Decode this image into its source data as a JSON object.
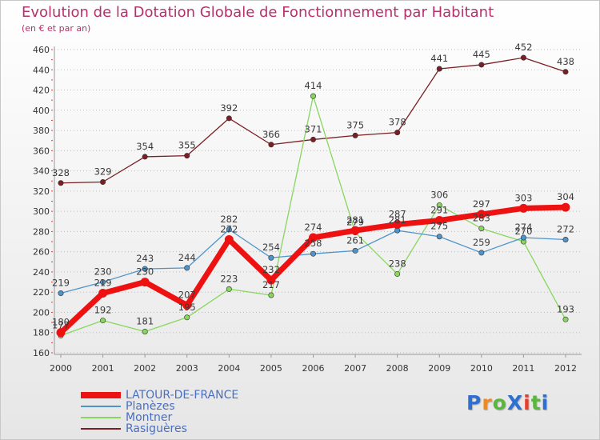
{
  "title": "Evolution de la Dotation Globale de Fonctionnement par Habitant",
  "subtitle": "(en € et par an)",
  "brand": {
    "text": "ProXiti",
    "letter_colors": [
      "#2f6fd0",
      "#f08a1c",
      "#58b83a",
      "#2f6fd0",
      "#e83c2c",
      "#58b83a",
      "#2f6fd0"
    ]
  },
  "chart_data": {
    "type": "line",
    "x": [
      "2000",
      "2001",
      "2002",
      "2003",
      "2004",
      "2005",
      "2006",
      "2007",
      "2008",
      "2009",
      "2010",
      "2011",
      "2012"
    ],
    "ylim": [
      160,
      460
    ],
    "yticks": [
      160,
      180,
      200,
      220,
      240,
      260,
      280,
      300,
      320,
      340,
      360,
      380,
      400,
      420,
      440,
      460
    ],
    "grid": "horizontal-dotted",
    "legend": "bottom-left",
    "series": [
      {
        "name": "Rasiguères",
        "color": "#7a1f24",
        "emphasis": false,
        "values": [
          328,
          329,
          354,
          355,
          392,
          366,
          371,
          375,
          378,
          441,
          445,
          452,
          438
        ],
        "labels": [
          "328",
          "329",
          "354",
          "355",
          "392",
          "366",
          "371",
          "375",
          "378",
          "441",
          "445",
          "452",
          "438"
        ]
      },
      {
        "name": "Montner",
        "color": "#88d65e",
        "emphasis": false,
        "values": [
          177,
          192,
          181,
          195,
          223,
          217,
          414,
          279,
          238,
          306,
          283,
          270,
          193
        ],
        "labels": [
          "177",
          "192",
          "181",
          "195",
          "223",
          "217",
          "414",
          "279",
          "238",
          "306",
          "283",
          "270",
          "193"
        ]
      },
      {
        "name": "Planèzes",
        "color": "#4d94cc",
        "emphasis": false,
        "values": [
          219,
          230,
          243,
          244,
          282,
          254,
          258,
          261,
          281,
          275,
          259,
          274,
          272
        ],
        "labels": [
          "219",
          "230",
          "243",
          "244",
          "282",
          "254",
          "258",
          "261",
          "281",
          "275",
          "259",
          "274",
          "272"
        ]
      },
      {
        "name": "LATOUR-DE-FRANCE",
        "color": "#ee1111",
        "emphasis": true,
        "values": [
          180,
          219,
          230,
          207,
          272,
          232,
          274,
          281,
          287,
          291,
          297,
          303,
          304
        ],
        "labels": [
          "180",
          "219",
          "230",
          "207",
          "272",
          "232",
          "274",
          "281",
          "287",
          "291",
          "297",
          "303",
          "304"
        ]
      }
    ],
    "legend_order": [
      "LATOUR-DE-FRANCE",
      "Planèzes",
      "Montner",
      "Rasiguères"
    ]
  }
}
